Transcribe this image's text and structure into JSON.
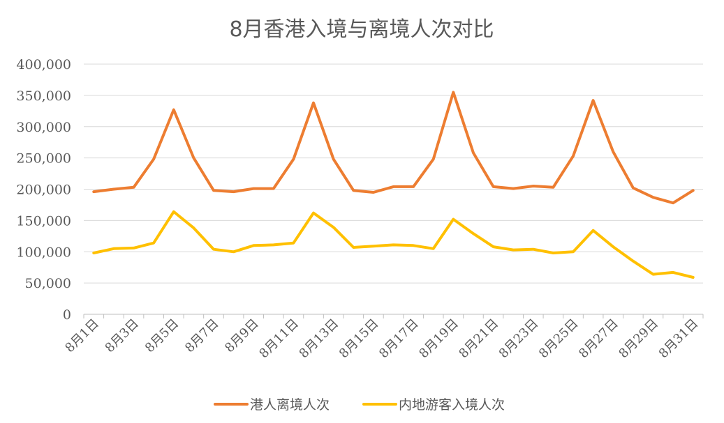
{
  "chart_data": {
    "type": "line",
    "title": "8月香港入境与离境人次对比",
    "xlabel": "",
    "ylabel": "",
    "ylim": [
      0,
      400000
    ],
    "yticks": [
      "0",
      "50,000",
      "100,000",
      "150,000",
      "200,000",
      "250,000",
      "300,000",
      "350,000",
      "400,000"
    ],
    "categories": [
      "8月1日",
      "8月2日",
      "8月3日",
      "8月4日",
      "8月5日",
      "8月6日",
      "8月7日",
      "8月8日",
      "8月9日",
      "8月10日",
      "8月11日",
      "8月12日",
      "8月13日",
      "8月14日",
      "8月15日",
      "8月16日",
      "8月17日",
      "8月18日",
      "8月19日",
      "8月20日",
      "8月21日",
      "8月22日",
      "8月23日",
      "8月24日",
      "8月25日",
      "8月26日",
      "8月27日",
      "8月28日",
      "8月29日",
      "8月30日",
      "8月31日"
    ],
    "xtick_labels": [
      "8月1日",
      "8月3日",
      "8月5日",
      "8月7日",
      "8月9日",
      "8月11日",
      "8月13日",
      "8月15日",
      "8月17日",
      "8月19日",
      "8月21日",
      "8月23日",
      "8月25日",
      "8月27日",
      "8月29日",
      "8月31日"
    ],
    "grid": true,
    "legend_position": "bottom",
    "series": [
      {
        "name": "港人离境人次",
        "color": "#ED7D31",
        "values": [
          196000,
          200000,
          203000,
          248000,
          327000,
          250000,
          198000,
          196000,
          201000,
          201000,
          248000,
          338000,
          248000,
          198000,
          195000,
          204000,
          204000,
          248000,
          355000,
          258000,
          204000,
          201000,
          205000,
          203000,
          253000,
          342000,
          260000,
          202000,
          187000,
          178000,
          198000
        ]
      },
      {
        "name": "内地游客入境人次",
        "color": "#FFC000",
        "values": [
          98000,
          105000,
          106000,
          114000,
          164000,
          138000,
          104000,
          100000,
          110000,
          111000,
          114000,
          162000,
          139000,
          107000,
          109000,
          111000,
          110000,
          105000,
          152000,
          129000,
          108000,
          103000,
          104000,
          98000,
          100000,
          134000,
          108000,
          85000,
          64000,
          67000,
          59000
        ]
      }
    ]
  }
}
